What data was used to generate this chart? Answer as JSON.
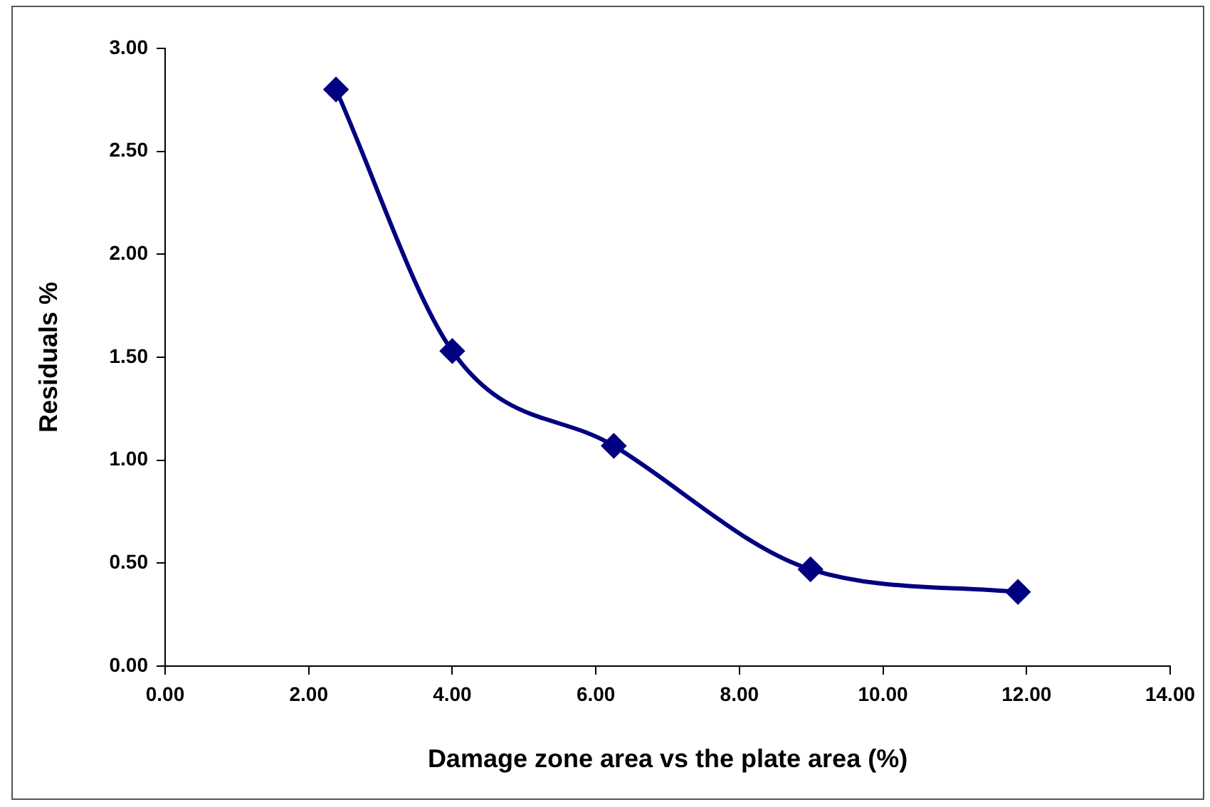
{
  "chart_data": {
    "type": "line",
    "xlabel": "Damage zone area vs the plate area (%)",
    "ylabel": "Residuals %",
    "x": [
      2.38,
      4.0,
      6.25,
      8.99,
      11.88
    ],
    "series": [
      {
        "color": "#000080",
        "values": [
          2.8,
          1.53,
          1.07,
          0.47,
          0.36
        ]
      }
    ],
    "xlim": [
      0,
      14
    ],
    "xticks": [
      {
        "value": 0,
        "label": "0.00"
      },
      {
        "value": 2,
        "label": "2.00"
      },
      {
        "value": 4,
        "label": "4.00"
      },
      {
        "value": 6,
        "label": "6.00"
      },
      {
        "value": 8,
        "label": "8.00"
      },
      {
        "value": 10,
        "label": "10.00"
      },
      {
        "value": 12,
        "label": "12.00"
      },
      {
        "value": 14,
        "label": "14.00"
      }
    ],
    "ylim": [
      0,
      3
    ],
    "yticks": [
      {
        "value": 0,
        "label": "0.00"
      },
      {
        "value": 0.5,
        "label": "0.50"
      },
      {
        "value": 1,
        "label": "1.00"
      },
      {
        "value": 1.5,
        "label": "1.50"
      },
      {
        "value": 2,
        "label": "2.00"
      },
      {
        "value": 2.5,
        "label": "2.50"
      },
      {
        "value": 3,
        "label": "3.00"
      }
    ],
    "grid": false,
    "legend": false,
    "marker": "diamond",
    "line_style": "solid"
  }
}
